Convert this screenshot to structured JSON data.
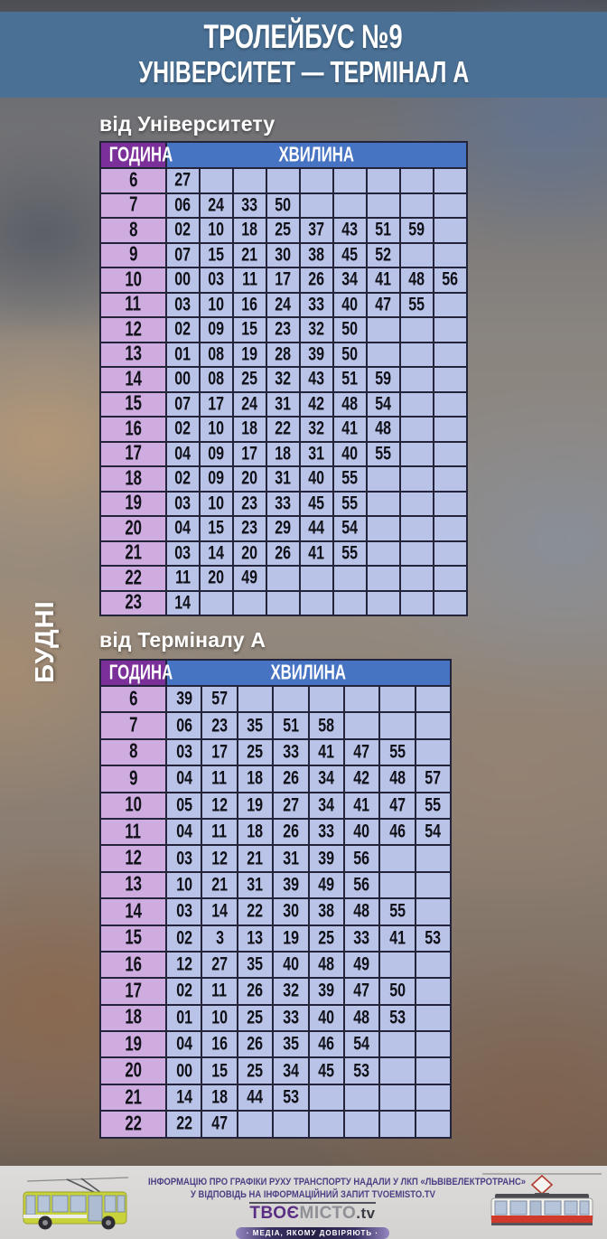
{
  "title": {
    "line1": "ТРОЛЕЙБУС №9",
    "line2": "УНІВЕРСИТЕТ — ТЕРМІНАЛ А"
  },
  "day_label": "БУДНІ",
  "tables": [
    {
      "section_label": "від Університету",
      "hour_header": "ГОДИНА",
      "minute_header": "ХВИЛИНА",
      "columns": 9,
      "rows": [
        {
          "hour": "6",
          "minutes": [
            "27"
          ]
        },
        {
          "hour": "7",
          "minutes": [
            "06",
            "24",
            "33",
            "50"
          ]
        },
        {
          "hour": "8",
          "minutes": [
            "02",
            "10",
            "18",
            "25",
            "37",
            "43",
            "51",
            "59"
          ]
        },
        {
          "hour": "9",
          "minutes": [
            "07",
            "15",
            "21",
            "30",
            "38",
            "45",
            "52"
          ]
        },
        {
          "hour": "10",
          "minutes": [
            "00",
            "03",
            "11",
            "17",
            "26",
            "34",
            "41",
            "48",
            "56"
          ]
        },
        {
          "hour": "11",
          "minutes": [
            "03",
            "10",
            "16",
            "24",
            "33",
            "40",
            "47",
            "55"
          ]
        },
        {
          "hour": "12",
          "minutes": [
            "02",
            "09",
            "15",
            "23",
            "32",
            "50"
          ]
        },
        {
          "hour": "13",
          "minutes": [
            "01",
            "08",
            "19",
            "28",
            "39",
            "50"
          ]
        },
        {
          "hour": "14",
          "minutes": [
            "00",
            "08",
            "25",
            "32",
            "43",
            "51",
            "59"
          ]
        },
        {
          "hour": "15",
          "minutes": [
            "07",
            "17",
            "24",
            "31",
            "42",
            "48",
            "54"
          ]
        },
        {
          "hour": "16",
          "minutes": [
            "02",
            "10",
            "18",
            "22",
            "32",
            "41",
            "48"
          ]
        },
        {
          "hour": "17",
          "minutes": [
            "04",
            "09",
            "17",
            "18",
            "31",
            "40",
            "55"
          ]
        },
        {
          "hour": "18",
          "minutes": [
            "02",
            "09",
            "20",
            "31",
            "40",
            "55"
          ]
        },
        {
          "hour": "19",
          "minutes": [
            "03",
            "10",
            "23",
            "33",
            "45",
            "55"
          ]
        },
        {
          "hour": "20",
          "minutes": [
            "04",
            "15",
            "23",
            "29",
            "44",
            "54"
          ]
        },
        {
          "hour": "21",
          "minutes": [
            "03",
            "14",
            "20",
            "26",
            "41",
            "55"
          ]
        },
        {
          "hour": "22",
          "minutes": [
            "11",
            "20",
            "49"
          ]
        },
        {
          "hour": "23",
          "minutes": [
            "14"
          ]
        }
      ]
    },
    {
      "section_label": "від Терміналу А",
      "hour_header": "ГОДИНА",
      "minute_header": "ХВИЛИНА",
      "columns": 8,
      "rows": [
        {
          "hour": "6",
          "minutes": [
            "39",
            "57"
          ]
        },
        {
          "hour": "7",
          "minutes": [
            "06",
            "23",
            "35",
            "51",
            "58"
          ]
        },
        {
          "hour": "8",
          "minutes": [
            "03",
            "17",
            "25",
            "33",
            "41",
            "47",
            "55"
          ]
        },
        {
          "hour": "9",
          "minutes": [
            "04",
            "11",
            "18",
            "26",
            "34",
            "42",
            "48",
            "57"
          ]
        },
        {
          "hour": "10",
          "minutes": [
            "05",
            "12",
            "19",
            "27",
            "34",
            "41",
            "47",
            "55"
          ]
        },
        {
          "hour": "11",
          "minutes": [
            "04",
            "11",
            "18",
            "26",
            "33",
            "40",
            "46",
            "54"
          ]
        },
        {
          "hour": "12",
          "minutes": [
            "03",
            "12",
            "21",
            "31",
            "39",
            "56"
          ]
        },
        {
          "hour": "13",
          "minutes": [
            "10",
            "21",
            "31",
            "39",
            "49",
            "56"
          ]
        },
        {
          "hour": "14",
          "minutes": [
            "03",
            "14",
            "22",
            "30",
            "38",
            "48",
            "55"
          ]
        },
        {
          "hour": "15",
          "minutes": [
            "02",
            "3",
            "13",
            "19",
            "25",
            "33",
            "41",
            "53"
          ]
        },
        {
          "hour": "16",
          "minutes": [
            "12",
            "27",
            "35",
            "40",
            "48",
            "49"
          ]
        },
        {
          "hour": "17",
          "minutes": [
            "02",
            "11",
            "26",
            "32",
            "39",
            "47",
            "50"
          ]
        },
        {
          "hour": "18",
          "minutes": [
            "01",
            "10",
            "25",
            "33",
            "40",
            "48",
            "53"
          ]
        },
        {
          "hour": "19",
          "minutes": [
            "04",
            "16",
            "26",
            "35",
            "46",
            "54"
          ]
        },
        {
          "hour": "20",
          "minutes": [
            "00",
            "15",
            "25",
            "34",
            "45",
            "53"
          ]
        },
        {
          "hour": "21",
          "minutes": [
            "14",
            "18",
            "44",
            "53"
          ]
        },
        {
          "hour": "22",
          "minutes": [
            "22",
            "47"
          ]
        }
      ]
    }
  ],
  "footer": {
    "info_line1": "ІНФОРМАЦІЮ ПРО ГРАФІКИ РУХУ ТРАНСПОРТУ НАДАЛИ У ЛКП «ЛЬВІВЕЛЕКТРОТРАНС»",
    "info_line2": "У ВІДПОВІДЬ НА ІНФОРМАЦІЙНИЙ ЗАПИТ TVOEMISTO.TV",
    "logo": {
      "part1": "ТВОЄ",
      "part2": "МІСТО",
      "part3": ".tv",
      "tagline": "· МЕДІА, ЯКОМУ ДОВІРЯЮТЬ ·"
    },
    "icons": {
      "left": "trolleybus-icon",
      "right": "tram-icon"
    }
  },
  "colors": {
    "header_band": "#4a7095",
    "hour_header_bg": "#7b2f98",
    "minute_header_bg": "#4673c2",
    "hour_cell_bg": "#cfacdf",
    "minute_cell_bg": "#b9c3e7",
    "table_border": "#23233a",
    "footer_bg": "#d7d6d4",
    "footer_text": "#4d3f85",
    "logo_purple": "#5a2e84",
    "trolleybus_yellow": "#c8d23b",
    "tram_red": "#cf3a2c"
  }
}
